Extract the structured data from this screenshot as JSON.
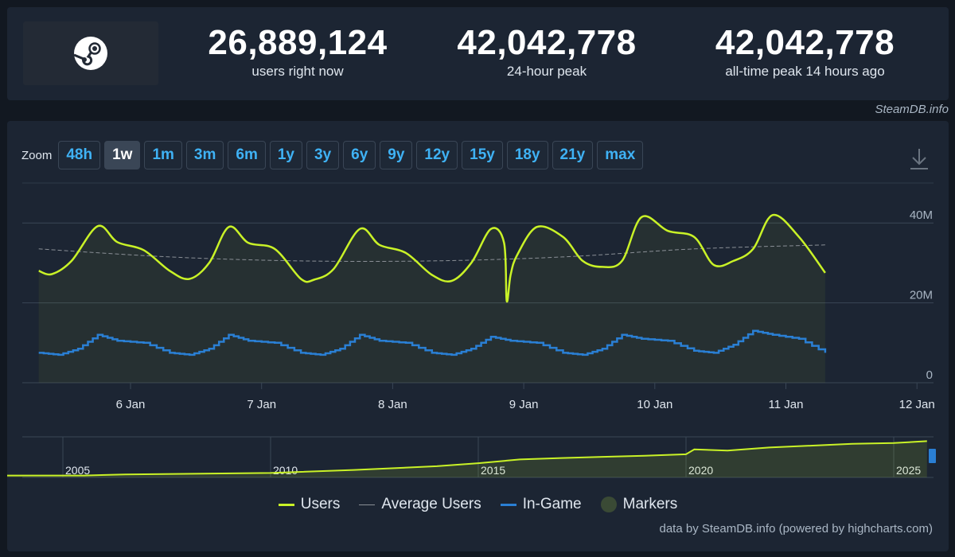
{
  "header": {
    "stats": [
      {
        "value": "26,889,124",
        "label": "users right now"
      },
      {
        "value": "42,042,778",
        "label": "24-hour peak"
      },
      {
        "value": "42,042,778",
        "label": "all-time peak 14 hours ago"
      }
    ],
    "credit": "SteamDB.info"
  },
  "zoom": {
    "label": "Zoom",
    "options": [
      "48h",
      "1w",
      "1m",
      "3m",
      "6m",
      "1y",
      "3y",
      "6y",
      "9y",
      "12y",
      "15y",
      "18y",
      "21y",
      "max"
    ],
    "active": "1w"
  },
  "colors": {
    "users": "#c9f227",
    "average": "#8a8f96",
    "ingame": "#2a7fd4",
    "markers": "#3a4a35",
    "accent": "#3fb2f5"
  },
  "chart_data": {
    "type": "line",
    "x_ticks": [
      "6 Jan",
      "7 Jan",
      "8 Jan",
      "9 Jan",
      "10 Jan",
      "11 Jan",
      "12 Jan"
    ],
    "y_ticks": [
      "40M",
      "20M",
      "0"
    ],
    "ylim": [
      0,
      50
    ],
    "y_unit": "M",
    "grid": true,
    "legend_position": "bottom",
    "series": [
      {
        "name": "Users",
        "x": [
          0.0,
          0.1,
          0.25,
          0.45,
          0.6,
          0.8,
          1.0,
          1.15,
          1.3,
          1.45,
          1.6,
          1.8,
          2.0,
          2.1,
          2.25,
          2.45,
          2.6,
          2.8,
          3.0,
          3.15,
          3.3,
          3.45,
          3.55,
          3.57,
          3.6,
          3.65,
          3.8,
          4.0,
          4.15,
          4.3,
          4.45,
          4.6,
          4.8,
          5.0,
          5.15,
          5.3,
          5.45,
          5.6,
          5.8,
          6.0
        ],
        "values": [
          28.0,
          27.2,
          30.5,
          39.2,
          35.2,
          33.2,
          28.0,
          26.0,
          30.0,
          39.0,
          35.0,
          33.5,
          26.0,
          25.8,
          28.5,
          38.5,
          34.5,
          32.5,
          27.0,
          25.5,
          30.0,
          38.5,
          35.0,
          20.5,
          27.0,
          32.0,
          39.0,
          36.5,
          30.5,
          29.0,
          30.5,
          41.5,
          38.0,
          36.5,
          29.5,
          30.5,
          33.5,
          42.0,
          36.5,
          27.5
        ]
      },
      {
        "name": "Average Users",
        "x": [
          0.0,
          1.0,
          2.0,
          3.0,
          4.0,
          5.0,
          6.0
        ],
        "values": [
          33.5,
          31.5,
          30.5,
          30.5,
          31.5,
          33.5,
          34.5
        ]
      },
      {
        "name": "In-Game",
        "x": [
          0.0,
          0.15,
          0.3,
          0.45,
          0.6,
          0.8,
          1.0,
          1.15,
          1.3,
          1.45,
          1.6,
          1.8,
          2.0,
          2.15,
          2.3,
          2.45,
          2.6,
          2.8,
          3.0,
          3.15,
          3.3,
          3.45,
          3.6,
          3.8,
          4.0,
          4.15,
          4.3,
          4.45,
          4.6,
          4.8,
          5.0,
          5.15,
          5.3,
          5.45,
          5.6,
          5.8,
          6.0
        ],
        "values": [
          7.5,
          7.0,
          8.5,
          12.0,
          10.5,
          10.0,
          7.5,
          7.0,
          8.5,
          12.0,
          10.5,
          10.0,
          7.5,
          7.0,
          8.5,
          12.0,
          10.5,
          10.0,
          7.5,
          7.0,
          8.5,
          11.5,
          10.5,
          10.0,
          7.5,
          7.0,
          8.5,
          12.0,
          11.0,
          10.5,
          8.0,
          7.5,
          9.5,
          13.0,
          12.0,
          11.0,
          7.5
        ]
      }
    ],
    "x_start_offset_days": -0.7,
    "navigator": {
      "x_labels": [
        "2005",
        "2010",
        "2015",
        "2020",
        "2025"
      ],
      "users_x": [
        2003.5,
        2005.5,
        2006.5,
        2010,
        2012,
        2014,
        2015,
        2016,
        2017,
        2018,
        2019,
        2020,
        2020.2,
        2021,
        2022,
        2023,
        2024,
        2025,
        2025.8
      ],
      "users_values": [
        0.05,
        0.05,
        0.08,
        0.12,
        0.2,
        0.3,
        0.38,
        0.48,
        0.52,
        0.55,
        0.58,
        0.62,
        0.75,
        0.72,
        0.8,
        0.85,
        0.9,
        0.92,
        0.97
      ]
    }
  },
  "legend": {
    "items": [
      "Users",
      "Average Users",
      "In-Game",
      "Markers"
    ]
  },
  "footer": {
    "credit": "data by SteamDB.info (powered by highcharts.com)"
  }
}
